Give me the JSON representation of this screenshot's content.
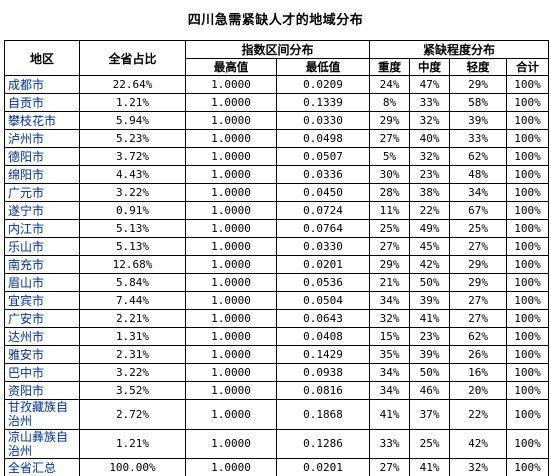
{
  "title": "四川急需紧缺人才的地域分布",
  "headers": {
    "region": "地区",
    "share": "全省占比",
    "index_range": "指数区间分布",
    "index_max": "最高值",
    "index_min": "最低值",
    "shortage": "紧缺程度分布",
    "severe": "重度",
    "moderate": "中度",
    "mild": "轻度",
    "total": "合计"
  },
  "rows": [
    {
      "region": "成都市",
      "share": "22.64%",
      "max": "1.0000",
      "min": "0.0209",
      "severe": "24%",
      "moderate": "47%",
      "mild": "29%",
      "total": "100%"
    },
    {
      "region": "自贡市",
      "share": "1.21%",
      "max": "1.0000",
      "min": "0.1339",
      "severe": "8%",
      "moderate": "33%",
      "mild": "58%",
      "total": "100%"
    },
    {
      "region": "攀枝花市",
      "share": "5.94%",
      "max": "1.0000",
      "min": "0.0330",
      "severe": "29%",
      "moderate": "32%",
      "mild": "39%",
      "total": "100%"
    },
    {
      "region": "泸州市",
      "share": "5.23%",
      "max": "1.0000",
      "min": "0.0498",
      "severe": "27%",
      "moderate": "40%",
      "mild": "33%",
      "total": "100%"
    },
    {
      "region": "德阳市",
      "share": "3.72%",
      "max": "1.0000",
      "min": "0.0507",
      "severe": "5%",
      "moderate": "32%",
      "mild": "62%",
      "total": "100%"
    },
    {
      "region": "绵阳市",
      "share": "4.43%",
      "max": "1.0000",
      "min": "0.0336",
      "severe": "30%",
      "moderate": "23%",
      "mild": "48%",
      "total": "100%"
    },
    {
      "region": "广元市",
      "share": "3.22%",
      "max": "1.0000",
      "min": "0.0450",
      "severe": "28%",
      "moderate": "38%",
      "mild": "34%",
      "total": "100%"
    },
    {
      "region": "遂宁市",
      "share": "0.91%",
      "max": "1.0000",
      "min": "0.0724",
      "severe": "11%",
      "moderate": "22%",
      "mild": "67%",
      "total": "100%"
    },
    {
      "region": "内江市",
      "share": "5.13%",
      "max": "1.0000",
      "min": "0.0764",
      "severe": "25%",
      "moderate": "49%",
      "mild": "25%",
      "total": "100%"
    },
    {
      "region": "乐山市",
      "share": "5.13%",
      "max": "1.0000",
      "min": "0.0330",
      "severe": "27%",
      "moderate": "45%",
      "mild": "27%",
      "total": "100%"
    },
    {
      "region": "南充市",
      "share": "12.68%",
      "max": "1.0000",
      "min": "0.0201",
      "severe": "29%",
      "moderate": "42%",
      "mild": "29%",
      "total": "100%"
    },
    {
      "region": "眉山市",
      "share": "5.84%",
      "max": "1.0000",
      "min": "0.0536",
      "severe": "21%",
      "moderate": "50%",
      "mild": "29%",
      "total": "100%"
    },
    {
      "region": "宜宾市",
      "share": "7.44%",
      "max": "1.0000",
      "min": "0.0504",
      "severe": "34%",
      "moderate": "39%",
      "mild": "27%",
      "total": "100%"
    },
    {
      "region": "广安市",
      "share": "2.21%",
      "max": "1.0000",
      "min": "0.0643",
      "severe": "32%",
      "moderate": "41%",
      "mild": "27%",
      "total": "100%"
    },
    {
      "region": "达州市",
      "share": "1.31%",
      "max": "1.0000",
      "min": "0.0408",
      "severe": "15%",
      "moderate": "23%",
      "mild": "62%",
      "total": "100%"
    },
    {
      "region": "雅安市",
      "share": "2.31%",
      "max": "1.0000",
      "min": "0.1429",
      "severe": "35%",
      "moderate": "39%",
      "mild": "26%",
      "total": "100%"
    },
    {
      "region": "巴中市",
      "share": "3.22%",
      "max": "1.0000",
      "min": "0.0938",
      "severe": "34%",
      "moderate": "50%",
      "mild": "16%",
      "total": "100%"
    },
    {
      "region": "资阳市",
      "share": "3.52%",
      "max": "1.0000",
      "min": "0.0816",
      "severe": "34%",
      "moderate": "46%",
      "mild": "20%",
      "total": "100%"
    },
    {
      "region": "甘孜藏族自治州",
      "share": "2.72%",
      "max": "1.0000",
      "min": "0.1868",
      "severe": "41%",
      "moderate": "37%",
      "mild": "22%",
      "total": "100%"
    },
    {
      "region": "凉山彝族自治州",
      "share": "1.21%",
      "max": "1.0000",
      "min": "0.1286",
      "severe": "33%",
      "moderate": "25%",
      "mild": "42%",
      "total": "100%"
    },
    {
      "region": "全省汇总",
      "share": "100.00%",
      "max": "1.0000",
      "min": "0.0201",
      "severe": "27%",
      "moderate": "41%",
      "mild": "32%",
      "total": "100%"
    }
  ]
}
